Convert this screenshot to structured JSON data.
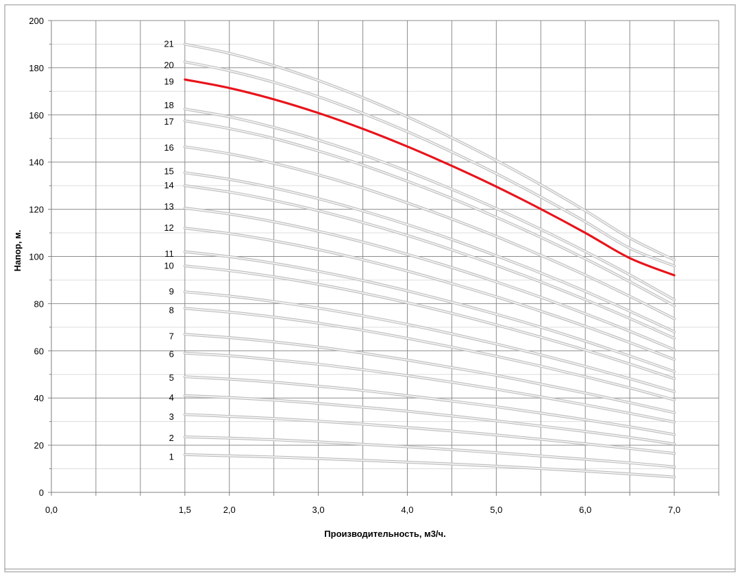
{
  "chart_data": {
    "type": "line",
    "title": "",
    "xlabel": "Производительность, м3/ч.",
    "ylabel": "Напор, м.",
    "xlim": [
      0,
      7.5
    ],
    "ylim": [
      0,
      200
    ],
    "x_ticks": [
      0,
      0.5,
      1,
      1.5,
      2,
      2.5,
      3,
      3.5,
      4,
      4.5,
      5,
      5.5,
      6,
      6.5,
      7,
      7.5
    ],
    "x_tick_labels": [
      {
        "x": 0,
        "label": "0,0"
      },
      {
        "x": 1.5,
        "label": "1,5"
      },
      {
        "x": 2,
        "label": "2,0"
      },
      {
        "x": 3,
        "label": "3,0"
      },
      {
        "x": 4,
        "label": "4,0"
      },
      {
        "x": 5,
        "label": "5,0"
      },
      {
        "x": 6,
        "label": "6,0"
      },
      {
        "x": 7,
        "label": "7,0"
      }
    ],
    "y_ticks": [
      0,
      20,
      40,
      60,
      80,
      100,
      120,
      140,
      160,
      180,
      200
    ],
    "y_tick_labels": [
      "0",
      "20",
      "40",
      "60",
      "80",
      "100",
      "120",
      "140",
      "160",
      "180",
      "200"
    ],
    "grid": true,
    "highlight_color": "#e8141b",
    "curve_color": "#d9d9d9",
    "x": [
      1.5,
      2,
      2.5,
      3,
      3.5,
      4,
      4.5,
      5,
      5.5,
      6,
      6.5,
      7
    ],
    "series": [
      {
        "name": "1",
        "values": [
          16,
          15.5,
          15,
          14.3,
          13.6,
          12.8,
          12,
          11.1,
          10.1,
          9,
          7.8,
          6.5
        ]
      },
      {
        "name": "2",
        "values": [
          23.5,
          23.0,
          22.3,
          21.4,
          20.4,
          19.3,
          18.1,
          16.8,
          15.4,
          14.0,
          12.5,
          10.8
        ]
      },
      {
        "name": "3",
        "values": [
          33,
          32.2,
          31.3,
          30.2,
          28.9,
          27.5,
          26,
          24.3,
          22.5,
          20.6,
          18.6,
          16.5
        ]
      },
      {
        "name": "4",
        "values": [
          41,
          40.2,
          39.1,
          37.7,
          36.1,
          34.4,
          32.4,
          30.3,
          28.1,
          25.8,
          23.3,
          20.5
        ]
      },
      {
        "name": "5",
        "values": [
          49,
          48,
          46.7,
          45,
          43.2,
          41,
          38.7,
          36.3,
          33.6,
          30.8,
          27.8,
          24.5
        ]
      },
      {
        "name": "6",
        "values": [
          59,
          57.9,
          56.2,
          54.3,
          52,
          49.5,
          46.7,
          43.7,
          40.5,
          37.1,
          33.5,
          29.8
        ]
      },
      {
        "name": "7",
        "values": [
          67,
          65.6,
          63.8,
          61.6,
          59,
          56.1,
          52.9,
          49.6,
          45.9,
          42.1,
          38,
          33.8
        ]
      },
      {
        "name": "8",
        "values": [
          78,
          76.4,
          74.3,
          71.7,
          68.7,
          65.3,
          61.6,
          57.7,
          53.5,
          49,
          44.3,
          39.2
        ]
      },
      {
        "name": "9",
        "values": [
          85,
          83.2,
          80.9,
          78.1,
          74.8,
          71.2,
          67.2,
          62.9,
          58.3,
          53.4,
          48.2,
          42.7
        ]
      },
      {
        "name": "10",
        "values": [
          96,
          94,
          91.4,
          88.2,
          84.5,
          80.4,
          75.9,
          71,
          65.8,
          60.3,
          54.4,
          48.2
        ]
      },
      {
        "name": "11",
        "values": [
          102,
          99.9,
          97.1,
          93.7,
          89.8,
          85.4,
          80.6,
          75.5,
          70,
          64.1,
          57.8,
          51.2
        ]
      },
      {
        "name": "12",
        "values": [
          112,
          109.7,
          106.6,
          102.9,
          98.6,
          93.8,
          88.5,
          82.9,
          76.8,
          70.4,
          63.5,
          56.3
        ]
      },
      {
        "name": "13",
        "values": [
          120.5,
          118,
          114.7,
          110.7,
          106.1,
          100.9,
          95.3,
          89.2,
          82.7,
          75.7,
          68.3,
          60.5
        ]
      },
      {
        "name": "14",
        "values": [
          130,
          127.3,
          123.7,
          119.4,
          114.4,
          108.9,
          102.8,
          96.2,
          89.2,
          81.7,
          73.7,
          65.3
        ]
      },
      {
        "name": "15",
        "values": [
          135.5,
          132.7,
          129,
          124.5,
          119.3,
          113.5,
          107.2,
          100.3,
          93,
          85.2,
          76.8,
          68.1
        ]
      },
      {
        "name": "16",
        "values": [
          146.5,
          143.5,
          139.5,
          134.6,
          129,
          122.7,
          115.9,
          108.5,
          100.5,
          92.1,
          83.1,
          73.6
        ]
      },
      {
        "name": "17",
        "values": [
          157.5,
          154.2,
          150,
          144.7,
          138.7,
          131.9,
          124.6,
          116.6,
          108.1,
          99,
          89.3,
          79.1
        ]
      },
      {
        "name": "18",
        "values": [
          162.5,
          159.2,
          154.7,
          149.3,
          143.1,
          136.1,
          128.5,
          120.3,
          111.5,
          102.1,
          92.2,
          81.6
        ]
      },
      {
        "name": "19",
        "values": [
          175,
          171.4,
          166.6,
          160.8,
          154.1,
          146.6,
          138.4,
          129.6,
          120.1,
          110,
          99.3,
          92
        ],
        "highlight": true
      },
      {
        "name": "20",
        "values": [
          182.5,
          178.7,
          173.8,
          167.7,
          160.7,
          152.9,
          144.3,
          135.1,
          125.2,
          114.7,
          103.5,
          96
        ]
      },
      {
        "name": "21",
        "values": [
          190,
          186.1,
          180.9,
          174.6,
          167.3,
          159.2,
          150.3,
          140.7,
          130.4,
          119.4,
          107.8,
          98.5
        ]
      }
    ],
    "curve_labels": [
      {
        "name": "1",
        "y": 15
      },
      {
        "name": "2",
        "y": 23
      },
      {
        "name": "3",
        "y": 32
      },
      {
        "name": "4",
        "y": 40
      },
      {
        "name": "5",
        "y": 48.5
      },
      {
        "name": "6",
        "y": 58.5
      },
      {
        "name": "7",
        "y": 66
      },
      {
        "name": "8",
        "y": 77
      },
      {
        "name": "9",
        "y": 85
      },
      {
        "name": "10",
        "y": 96
      },
      {
        "name": "11",
        "y": 101
      },
      {
        "name": "12",
        "y": 112
      },
      {
        "name": "13",
        "y": 121
      },
      {
        "name": "14",
        "y": 130
      },
      {
        "name": "15",
        "y": 136
      },
      {
        "name": "16",
        "y": 146
      },
      {
        "name": "17",
        "y": 157
      },
      {
        "name": "18",
        "y": 164
      },
      {
        "name": "19",
        "y": 174
      },
      {
        "name": "20",
        "y": 181
      },
      {
        "name": "21",
        "y": 190
      }
    ]
  }
}
